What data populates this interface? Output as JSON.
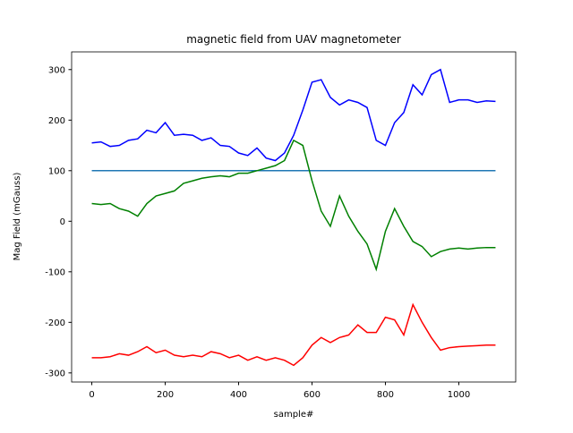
{
  "chart_data": {
    "type": "line",
    "title": "magnetic field from UAV magnetometer",
    "xlabel": "sample#",
    "ylabel": "Mag Field (mGauss)",
    "x": [
      0,
      25,
      50,
      75,
      100,
      125,
      150,
      175,
      200,
      225,
      250,
      275,
      300,
      325,
      350,
      375,
      400,
      425,
      450,
      475,
      500,
      525,
      550,
      575,
      600,
      625,
      650,
      675,
      700,
      725,
      750,
      775,
      800,
      825,
      850,
      875,
      900,
      925,
      950,
      975,
      1000,
      1025,
      1050,
      1075,
      1100
    ],
    "series": [
      {
        "color": "#1f77b4",
        "values": [
          100,
          100,
          100,
          100,
          100,
          100,
          100,
          100,
          100,
          100,
          100,
          100,
          100,
          100,
          100,
          100,
          100,
          100,
          100,
          100,
          100,
          100,
          100,
          100,
          100,
          100,
          100,
          100,
          100,
          100,
          100,
          100,
          100,
          100,
          100,
          100,
          100,
          100,
          100,
          100,
          100,
          100,
          100,
          100,
          100
        ]
      },
      {
        "color": "#0000ff",
        "values": [
          155,
          157,
          148,
          150,
          160,
          163,
          180,
          175,
          195,
          170,
          172,
          170,
          160,
          165,
          150,
          148,
          135,
          130,
          145,
          125,
          120,
          135,
          170,
          220,
          275,
          280,
          245,
          230,
          240,
          235,
          225,
          160,
          150,
          195,
          215,
          270,
          250,
          290,
          300,
          235,
          240,
          240,
          235,
          238,
          237
        ]
      },
      {
        "color": "#008000",
        "values": [
          35,
          33,
          35,
          25,
          20,
          10,
          35,
          50,
          55,
          60,
          75,
          80,
          85,
          88,
          90,
          88,
          95,
          95,
          100,
          105,
          110,
          120,
          160,
          150,
          80,
          20,
          -10,
          50,
          10,
          -20,
          -45,
          -95,
          -20,
          25,
          -10,
          -40,
          -50,
          -70,
          -60,
          -55,
          -53,
          -55,
          -53,
          -52,
          -52
        ]
      },
      {
        "color": "#ff0000",
        "values": [
          -270,
          -270,
          -268,
          -262,
          -265,
          -258,
          -248,
          -260,
          -255,
          -265,
          -268,
          -265,
          -268,
          -258,
          -262,
          -270,
          -265,
          -275,
          -268,
          -275,
          -270,
          -275,
          -285,
          -270,
          -245,
          -230,
          -240,
          -230,
          -225,
          -205,
          -220,
          -220,
          -190,
          -195,
          -225,
          -165,
          -200,
          -230,
          -255,
          -250,
          -248,
          -247,
          -246,
          -245,
          -245
        ]
      }
    ],
    "xlim": [
      -55,
      1155
    ],
    "xticks": [
      0,
      200,
      400,
      600,
      800,
      1000
    ],
    "ylim": [
      -318,
      335
    ],
    "yticks": [
      -300,
      -200,
      -100,
      0,
      100,
      200,
      300
    ],
    "grid": false
  }
}
